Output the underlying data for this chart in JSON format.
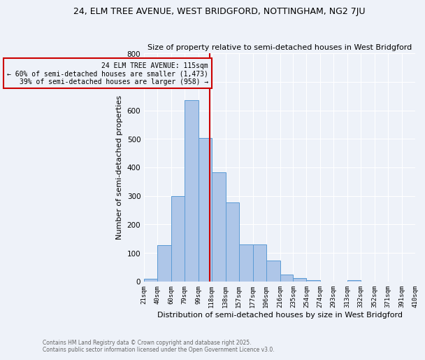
{
  "title": "24, ELM TREE AVENUE, WEST BRIDGFORD, NOTTINGHAM, NG2 7JU",
  "subtitle": "Size of property relative to semi-detached houses in West Bridgford",
  "xlabel": "Distribution of semi-detached houses by size in West Bridgford",
  "ylabel": "Number of semi-detached properties",
  "bin_labels": [
    "21sqm",
    "40sqm",
    "60sqm",
    "79sqm",
    "99sqm",
    "118sqm",
    "138sqm",
    "157sqm",
    "177sqm",
    "196sqm",
    "216sqm",
    "235sqm",
    "254sqm",
    "274sqm",
    "293sqm",
    "313sqm",
    "332sqm",
    "352sqm",
    "371sqm",
    "391sqm",
    "410sqm"
  ],
  "bin_edges": [
    21,
    40,
    60,
    79,
    99,
    118,
    138,
    157,
    177,
    196,
    216,
    235,
    254,
    274,
    293,
    313,
    332,
    352,
    371,
    391,
    410
  ],
  "bar_heights": [
    10,
    128,
    300,
    636,
    503,
    383,
    278,
    130,
    130,
    73,
    25,
    12,
    5,
    0,
    0,
    4,
    0,
    0,
    0,
    0
  ],
  "bar_color": "#aec6e8",
  "bar_edge_color": "#5b9bd5",
  "property_value": 115,
  "vline_color": "#cc0000",
  "annotation_title": "24 ELM TREE AVENUE: 115sqm",
  "annotation_line1": "← 60% of semi-detached houses are smaller (1,473)",
  "annotation_line2": "39% of semi-detached houses are larger (958) →",
  "annotation_box_color": "#cc0000",
  "ylim": [
    0,
    800
  ],
  "yticks": [
    0,
    100,
    200,
    300,
    400,
    500,
    600,
    700,
    800
  ],
  "footer_line1": "Contains HM Land Registry data © Crown copyright and database right 2025.",
  "footer_line2": "Contains public sector information licensed under the Open Government Licence v3.0.",
  "bg_color": "#eef2f9",
  "grid_color": "#ffffff"
}
